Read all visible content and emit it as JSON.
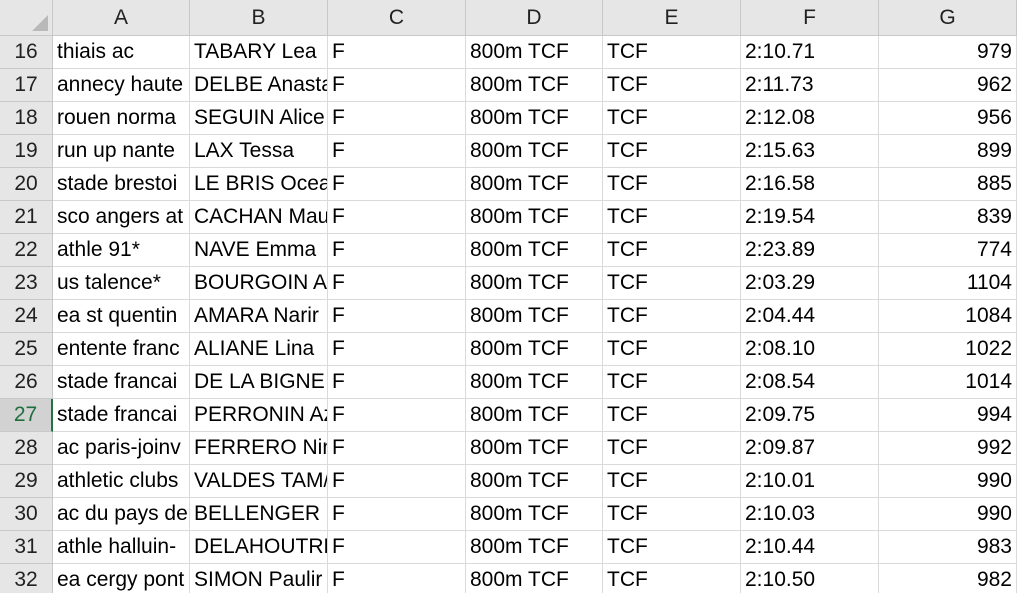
{
  "columns": [
    "A",
    "B",
    "C",
    "D",
    "E",
    "F",
    "G"
  ],
  "selected_row": 27,
  "rows": [
    {
      "num": "16",
      "A": "thiais ac",
      "B": "TABARY Lea",
      "C": "F",
      "D": "800m TCF",
      "E": "TCF",
      "F": "2:10.71",
      "G": "979"
    },
    {
      "num": "17",
      "A": "annecy haute",
      "B": "DELBE Anasta",
      "C": "F",
      "D": "800m TCF",
      "E": "TCF",
      "F": "2:11.73",
      "G": "962"
    },
    {
      "num": "18",
      "A": "rouen norma",
      "B": "SEGUIN Alice",
      "C": "F",
      "D": "800m TCF",
      "E": "TCF",
      "F": "2:12.08",
      "G": "956"
    },
    {
      "num": "19",
      "A": "run up nante",
      "B": "LAX Tessa",
      "C": "F",
      "D": "800m TCF",
      "E": "TCF",
      "F": "2:15.63",
      "G": "899"
    },
    {
      "num": "20",
      "A": "stade brestoi",
      "B": "LE BRIS Ocea",
      "C": "F",
      "D": "800m TCF",
      "E": "TCF",
      "F": "2:16.58",
      "G": "885"
    },
    {
      "num": "21",
      "A": "sco angers at",
      "B": "CACHAN Mau",
      "C": "F",
      "D": "800m TCF",
      "E": "TCF",
      "F": "2:19.54",
      "G": "839"
    },
    {
      "num": "22",
      "A": "athle 91*",
      "B": "NAVE Emma",
      "C": "F",
      "D": "800m TCF",
      "E": "TCF",
      "F": "2:23.89",
      "G": "774"
    },
    {
      "num": "23",
      "A": "us talence*",
      "B": "BOURGOIN A",
      "C": "F",
      "D": "800m TCF",
      "E": "TCF",
      "F": "2:03.29",
      "G": "1104"
    },
    {
      "num": "24",
      "A": "ea st quentin",
      "B": "AMARA Narir",
      "C": "F",
      "D": "800m TCF",
      "E": "TCF",
      "F": "2:04.44",
      "G": "1084"
    },
    {
      "num": "25",
      "A": "entente franc",
      "B": "ALIANE Lina",
      "C": "F",
      "D": "800m TCF",
      "E": "TCF",
      "F": "2:08.10",
      "G": "1022"
    },
    {
      "num": "26",
      "A": "stade francai",
      "B": "DE LA BIGNE",
      "C": "F",
      "D": "800m TCF",
      "E": "TCF",
      "F": "2:08.54",
      "G": "1014"
    },
    {
      "num": "27",
      "A": "stade francai",
      "B": "PERRONIN Az",
      "C": "F",
      "D": "800m TCF",
      "E": "TCF",
      "F": "2:09.75",
      "G": "994"
    },
    {
      "num": "28",
      "A": "ac paris-joinv",
      "B": "FERRERO Nin",
      "C": "F",
      "D": "800m TCF",
      "E": "TCF",
      "F": "2:09.87",
      "G": "992"
    },
    {
      "num": "29",
      "A": "athletic clubs",
      "B": "VALDES TAM/",
      "C": "F",
      "D": "800m TCF",
      "E": "TCF",
      "F": "2:10.01",
      "G": "990"
    },
    {
      "num": "30",
      "A": "ac du pays de",
      "B": "BELLENGER N",
      "C": "F",
      "D": "800m TCF",
      "E": "TCF",
      "F": "2:10.03",
      "G": "990"
    },
    {
      "num": "31",
      "A": "athle halluin-",
      "B": "DELAHOUTRE",
      "C": "F",
      "D": "800m TCF",
      "E": "TCF",
      "F": "2:10.44",
      "G": "983"
    },
    {
      "num": "32",
      "A": "ea cergy pont",
      "B": "SIMON Paulir",
      "C": "F",
      "D": "800m TCF",
      "E": "TCF",
      "F": "2:10.50",
      "G": "982"
    }
  ]
}
